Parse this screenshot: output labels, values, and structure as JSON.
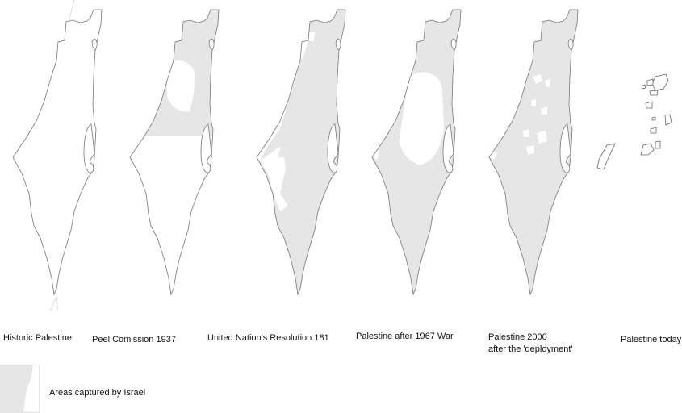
{
  "colors": {
    "captured": "#e6e6e6",
    "outline": "#777777",
    "background": "#ffffff"
  },
  "maps": [
    {
      "label": "Historic Palestine"
    },
    {
      "label": "Peel Comission 1937"
    },
    {
      "label": "United Nation's Resolution 181"
    },
    {
      "label": "Palestine after 1967 War"
    },
    {
      "label": "Palestine 2000",
      "label2": "after the 'deployment'"
    },
    {
      "label": "Palestine today"
    }
  ],
  "legend": {
    "label": "Areas captured by Israel"
  }
}
